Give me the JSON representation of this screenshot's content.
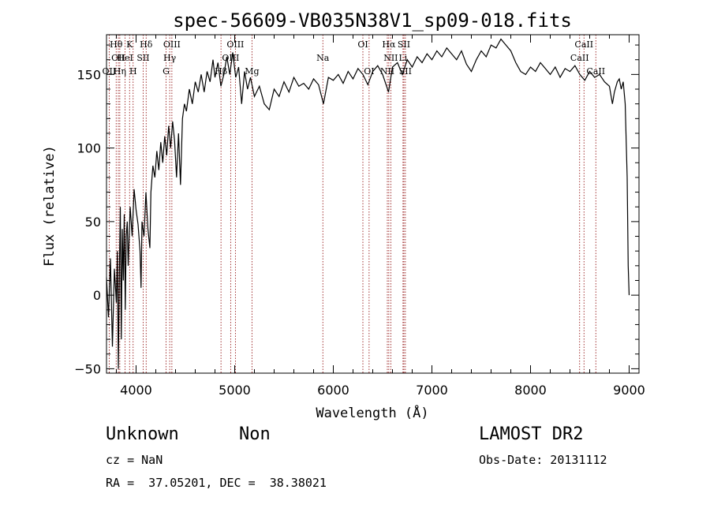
{
  "title": "spec-56609-VB035N38V1_sp09-018.fits",
  "footer": {
    "class_label": "Unknown",
    "subclass_label": "Non",
    "survey": "LAMOST DR2",
    "cz": "cz = NaN",
    "obs_date": "Obs-Date: 20131112",
    "coords": "RA =  37.05201, DEC =  38.38021"
  },
  "colors": {
    "spectrum": "#000000",
    "line_marker": "#8b0000",
    "axis": "#000000"
  },
  "chart_data": {
    "type": "line",
    "title": "spec-56609-VB035N38V1_sp09-018.fits",
    "xlabel": "Wavelength (Å)",
    "ylabel": "Flux (relative)",
    "xlim": [
      3700,
      9100
    ],
    "ylim": [
      -53,
      177
    ],
    "xticks": [
      4000,
      5000,
      6000,
      7000,
      8000,
      9000
    ],
    "yticks": [
      -50,
      0,
      50,
      100,
      150
    ],
    "grid": false,
    "spectrum": [
      [
        3700,
        12
      ],
      [
        3720,
        -15
      ],
      [
        3740,
        25
      ],
      [
        3760,
        -35
      ],
      [
        3780,
        18
      ],
      [
        3800,
        -5
      ],
      [
        3810,
        30
      ],
      [
        3820,
        -50
      ],
      [
        3830,
        15
      ],
      [
        3840,
        60
      ],
      [
        3850,
        -30
      ],
      [
        3860,
        45
      ],
      [
        3870,
        10
      ],
      [
        3880,
        55
      ],
      [
        3890,
        -10
      ],
      [
        3900,
        40
      ],
      [
        3910,
        50
      ],
      [
        3920,
        20
      ],
      [
        3940,
        60
      ],
      [
        3960,
        40
      ],
      [
        3980,
        72
      ],
      [
        4000,
        58
      ],
      [
        4020,
        48
      ],
      [
        4040,
        30
      ],
      [
        4050,
        5
      ],
      [
        4060,
        50
      ],
      [
        4080,
        40
      ],
      [
        4100,
        70
      ],
      [
        4120,
        45
      ],
      [
        4140,
        32
      ],
      [
        4150,
        70
      ],
      [
        4170,
        88
      ],
      [
        4190,
        80
      ],
      [
        4210,
        98
      ],
      [
        4230,
        85
      ],
      [
        4250,
        104
      ],
      [
        4270,
        90
      ],
      [
        4290,
        108
      ],
      [
        4310,
        95
      ],
      [
        4330,
        115
      ],
      [
        4350,
        100
      ],
      [
        4370,
        118
      ],
      [
        4390,
        105
      ],
      [
        4410,
        80
      ],
      [
        4430,
        110
      ],
      [
        4450,
        75
      ],
      [
        4470,
        120
      ],
      [
        4490,
        130
      ],
      [
        4510,
        125
      ],
      [
        4540,
        140
      ],
      [
        4570,
        130
      ],
      [
        4600,
        145
      ],
      [
        4630,
        138
      ],
      [
        4660,
        150
      ],
      [
        4690,
        138
      ],
      [
        4720,
        152
      ],
      [
        4750,
        145
      ],
      [
        4780,
        160
      ],
      [
        4800,
        148
      ],
      [
        4830,
        158
      ],
      [
        4860,
        142
      ],
      [
        4890,
        150
      ],
      [
        4920,
        162
      ],
      [
        4950,
        150
      ],
      [
        4980,
        165
      ],
      [
        5010,
        148
      ],
      [
        5040,
        155
      ],
      [
        5070,
        130
      ],
      [
        5100,
        152
      ],
      [
        5130,
        140
      ],
      [
        5160,
        148
      ],
      [
        5200,
        135
      ],
      [
        5250,
        142
      ],
      [
        5300,
        130
      ],
      [
        5350,
        126
      ],
      [
        5400,
        140
      ],
      [
        5450,
        135
      ],
      [
        5500,
        145
      ],
      [
        5550,
        138
      ],
      [
        5600,
        148
      ],
      [
        5650,
        142
      ],
      [
        5700,
        144
      ],
      [
        5750,
        140
      ],
      [
        5800,
        147
      ],
      [
        5850,
        143
      ],
      [
        5900,
        130
      ],
      [
        5950,
        148
      ],
      [
        6000,
        146
      ],
      [
        6050,
        150
      ],
      [
        6100,
        144
      ],
      [
        6150,
        152
      ],
      [
        6200,
        147
      ],
      [
        6250,
        154
      ],
      [
        6300,
        150
      ],
      [
        6350,
        143
      ],
      [
        6400,
        152
      ],
      [
        6450,
        156
      ],
      [
        6500,
        150
      ],
      [
        6560,
        138
      ],
      [
        6600,
        155
      ],
      [
        6650,
        158
      ],
      [
        6700,
        150
      ],
      [
        6750,
        160
      ],
      [
        6800,
        155
      ],
      [
        6850,
        162
      ],
      [
        6900,
        158
      ],
      [
        6950,
        164
      ],
      [
        7000,
        160
      ],
      [
        7050,
        166
      ],
      [
        7100,
        162
      ],
      [
        7150,
        168
      ],
      [
        7200,
        164
      ],
      [
        7250,
        160
      ],
      [
        7300,
        166
      ],
      [
        7350,
        157
      ],
      [
        7400,
        152
      ],
      [
        7450,
        160
      ],
      [
        7500,
        166
      ],
      [
        7550,
        162
      ],
      [
        7600,
        170
      ],
      [
        7650,
        168
      ],
      [
        7700,
        174
      ],
      [
        7750,
        170
      ],
      [
        7800,
        166
      ],
      [
        7850,
        158
      ],
      [
        7900,
        152
      ],
      [
        7950,
        150
      ],
      [
        8000,
        155
      ],
      [
        8050,
        152
      ],
      [
        8100,
        158
      ],
      [
        8150,
        154
      ],
      [
        8200,
        150
      ],
      [
        8250,
        155
      ],
      [
        8300,
        148
      ],
      [
        8350,
        154
      ],
      [
        8400,
        152
      ],
      [
        8450,
        156
      ],
      [
        8500,
        150
      ],
      [
        8550,
        146
      ],
      [
        8600,
        152
      ],
      [
        8650,
        148
      ],
      [
        8700,
        150
      ],
      [
        8750,
        145
      ],
      [
        8800,
        142
      ],
      [
        8830,
        130
      ],
      [
        8850,
        138
      ],
      [
        8880,
        145
      ],
      [
        8900,
        147
      ],
      [
        8920,
        140
      ],
      [
        8940,
        145
      ],
      [
        8960,
        130
      ],
      [
        8980,
        80
      ],
      [
        8990,
        20
      ],
      [
        9000,
        0
      ]
    ],
    "lines": [
      {
        "wavelength": 3727,
        "labels": [
          "OII"
        ],
        "row": 2
      },
      {
        "wavelength": 3798,
        "labels": [
          "Hθ"
        ],
        "row": 0
      },
      {
        "wavelength": 3820,
        "labels": [
          "OII"
        ],
        "row": 1
      },
      {
        "wavelength": 3835,
        "labels": [
          "Hη"
        ],
        "row": 2
      },
      {
        "wavelength": 3889,
        "labels": [
          "HeI"
        ],
        "row": 1
      },
      {
        "wavelength": 3934,
        "labels": [
          "K"
        ],
        "row": 0
      },
      {
        "wavelength": 3970,
        "labels": [
          "H"
        ],
        "row": 2
      },
      {
        "wavelength": 4072,
        "labels": [
          "SII"
        ],
        "row": 1
      },
      {
        "wavelength": 4102,
        "labels": [
          "Hδ"
        ],
        "row": 0
      },
      {
        "wavelength": 4304,
        "labels": [
          "G"
        ],
        "row": 2
      },
      {
        "wavelength": 4341,
        "labels": [
          "Hγ"
        ],
        "row": 1
      },
      {
        "wavelength": 4363,
        "labels": [
          "OIII"
        ],
        "row": 0
      },
      {
        "wavelength": 4861,
        "labels": [
          "Hβ"
        ],
        "row": 2
      },
      {
        "wavelength": 4959,
        "labels": [
          "OIII"
        ],
        "row": 1
      },
      {
        "wavelength": 5007,
        "labels": [
          "OIII"
        ],
        "row": 0
      },
      {
        "wavelength": 5175,
        "labels": [
          "Mg"
        ],
        "row": 2
      },
      {
        "wavelength": 5894,
        "labels": [
          "Na"
        ],
        "row": 1
      },
      {
        "wavelength": 6300,
        "labels": [
          "OI"
        ],
        "row": 0
      },
      {
        "wavelength": 6363,
        "labels": [
          "OI"
        ],
        "row": 2
      },
      {
        "wavelength": 6548,
        "labels": [
          "NII"
        ],
        "row": 2
      },
      {
        "wavelength": 6563,
        "labels": [
          "Hα"
        ],
        "row": 0
      },
      {
        "wavelength": 6583,
        "labels": [
          "NII"
        ],
        "row": 1
      },
      {
        "wavelength": 6707,
        "labels": [
          "Li"
        ],
        "row": 1
      },
      {
        "wavelength": 6716,
        "labels": [
          "SII"
        ],
        "row": 0
      },
      {
        "wavelength": 6731,
        "labels": [
          "SII"
        ],
        "row": 2
      },
      {
        "wavelength": 8498,
        "labels": [
          "CaII"
        ],
        "row": 1
      },
      {
        "wavelength": 8542,
        "labels": [
          "CaII"
        ],
        "row": 0
      },
      {
        "wavelength": 8662,
        "labels": [
          "CaII"
        ],
        "row": 2
      }
    ]
  }
}
